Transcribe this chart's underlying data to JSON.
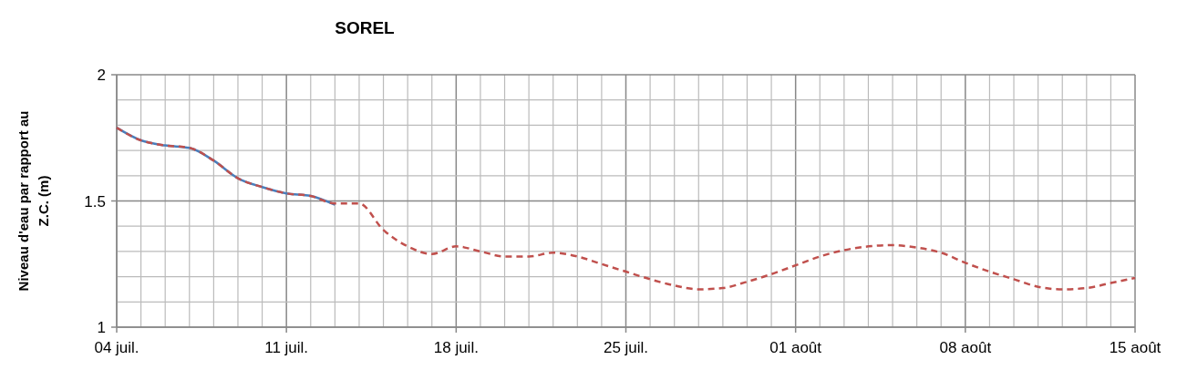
{
  "chart_data": {
    "type": "line",
    "title": "SOREL",
    "ylabel": "Niveau d'eau par rapport au\nZ.C. (m)",
    "xlim": [
      "--07-04",
      "--08-15"
    ],
    "xticks": [
      {
        "value": "--07-04",
        "label": "04 juil."
      },
      {
        "value": "--07-05",
        "label": null
      },
      {
        "value": "--07-06",
        "label": null
      },
      {
        "value": "--07-07",
        "label": null
      },
      {
        "value": "--07-08",
        "label": null
      },
      {
        "value": "--07-09",
        "label": null
      },
      {
        "value": "--07-10",
        "label": null
      },
      {
        "value": "--07-11",
        "label": "11 juil."
      },
      {
        "value": "--07-12",
        "label": null
      },
      {
        "value": "--07-13",
        "label": null
      },
      {
        "value": "--07-14",
        "label": null
      },
      {
        "value": "--07-15",
        "label": null
      },
      {
        "value": "--07-16",
        "label": null
      },
      {
        "value": "--07-17",
        "label": null
      },
      {
        "value": "--07-18",
        "label": "18 juil."
      },
      {
        "value": "--07-19",
        "label": null
      },
      {
        "value": "--07-20",
        "label": null
      },
      {
        "value": "--07-21",
        "label": null
      },
      {
        "value": "--07-22",
        "label": null
      },
      {
        "value": "--07-23",
        "label": null
      },
      {
        "value": "--07-24",
        "label": null
      },
      {
        "value": "--07-25",
        "label": "25 juil."
      },
      {
        "value": "--07-26",
        "label": null
      },
      {
        "value": "--07-27",
        "label": null
      },
      {
        "value": "--07-28",
        "label": null
      },
      {
        "value": "--07-29",
        "label": null
      },
      {
        "value": "--07-30",
        "label": null
      },
      {
        "value": "--07-31",
        "label": null
      },
      {
        "value": "--08-01",
        "label": "01 août"
      },
      {
        "value": "--08-02",
        "label": null
      },
      {
        "value": "--08-03",
        "label": null
      },
      {
        "value": "--08-04",
        "label": null
      },
      {
        "value": "--08-05",
        "label": null
      },
      {
        "value": "--08-06",
        "label": null
      },
      {
        "value": "--08-07",
        "label": null
      },
      {
        "value": "--08-08",
        "label": "08 août"
      },
      {
        "value": "--08-09",
        "label": null
      },
      {
        "value": "--08-10",
        "label": null
      },
      {
        "value": "--08-11",
        "label": null
      },
      {
        "value": "--08-12",
        "label": null
      },
      {
        "value": "--08-13",
        "label": null
      },
      {
        "value": "--08-14",
        "label": null
      },
      {
        "value": "--08-15",
        "label": "15 août"
      }
    ],
    "ylim": [
      1,
      2
    ],
    "yticks": [
      1,
      {
        "value": 1.1,
        "label": null
      },
      {
        "value": 1.2,
        "label": null
      },
      {
        "value": 1.3,
        "label": null
      },
      {
        "value": 1.4,
        "label": null
      },
      1.5,
      {
        "value": 1.6,
        "label": null
      },
      {
        "value": 1.7,
        "label": null
      },
      {
        "value": 1.8,
        "label": null
      },
      {
        "value": 1.9,
        "label": null
      },
      2
    ],
    "grid": true,
    "series": [
      {
        "color": "#4a7ebb",
        "line_style": "solid",
        "x": [
          "--07-04",
          "--07-05",
          "--07-06",
          "--07-07",
          "--07-08",
          "--07-09",
          "--07-10",
          "--07-11",
          "--07-12",
          "--07-13"
        ],
        "values": [
          1.79,
          1.74,
          1.72,
          1.71,
          1.66,
          1.59,
          1.555,
          1.53,
          1.52,
          1.485
        ]
      },
      {
        "color": "#c0504d",
        "line_style": "dashed",
        "x": [
          "--07-04",
          "--07-05",
          "--07-06",
          "--07-07",
          "--07-08",
          "--07-09",
          "--07-10",
          "--07-11",
          "--07-12",
          "--07-13",
          "--07-14",
          "--07-15",
          "--07-16",
          "--07-17",
          "--07-18",
          "--07-19",
          "--07-20",
          "--07-21",
          "--07-22",
          "--07-23",
          "--07-24",
          "--07-25",
          "--07-26",
          "--07-27",
          "--07-28",
          "--07-29",
          "--07-30",
          "--07-31",
          "--08-01",
          "--08-02",
          "--08-03",
          "--08-04",
          "--08-05",
          "--08-06",
          "--08-07",
          "--08-08",
          "--08-09",
          "--08-10",
          "--08-11",
          "--08-12",
          "--08-13",
          "--08-14",
          "--08-15"
        ],
        "values": [
          1.79,
          1.74,
          1.72,
          1.71,
          1.66,
          1.59,
          1.555,
          1.53,
          1.52,
          1.49,
          1.49,
          1.385,
          1.32,
          1.29,
          1.32,
          1.3,
          1.28,
          1.28,
          1.295,
          1.28,
          1.25,
          1.22,
          1.19,
          1.165,
          1.15,
          1.155,
          1.18,
          1.21,
          1.245,
          1.28,
          1.305,
          1.32,
          1.325,
          1.315,
          1.295,
          1.255,
          1.22,
          1.19,
          1.16,
          1.15,
          1.155,
          1.175,
          1.195
        ]
      }
    ]
  }
}
